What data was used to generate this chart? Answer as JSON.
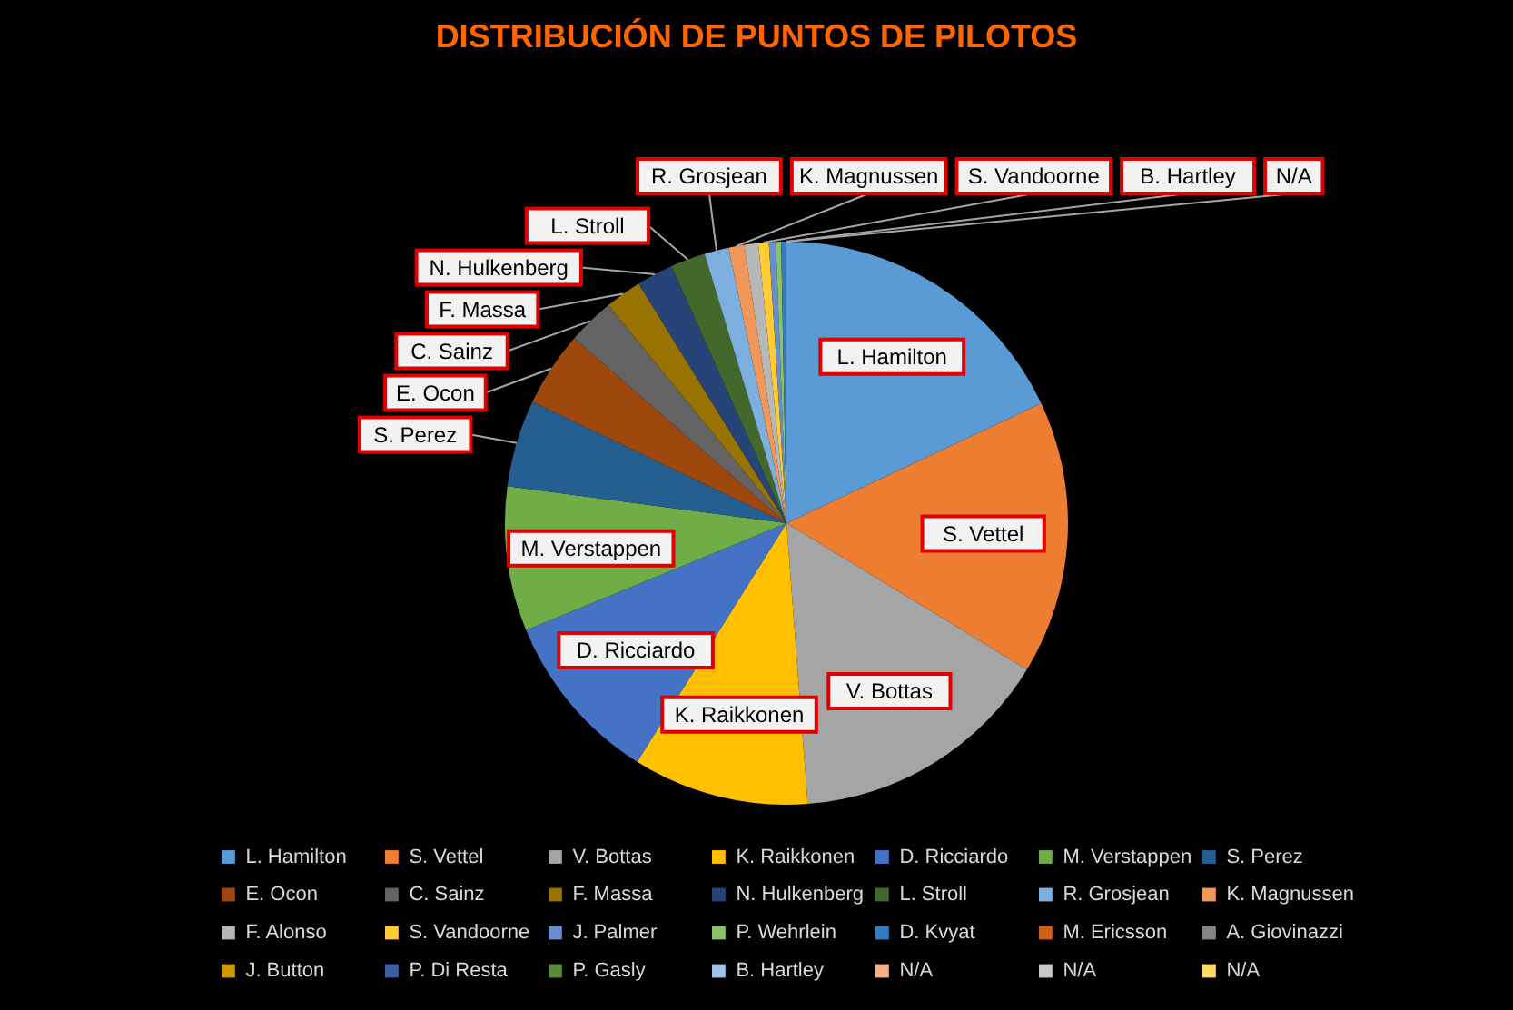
{
  "chart_data": {
    "type": "pie",
    "title": "DISTRIBUCIÓN DE PUNTOS DE PILOTOS",
    "categories": [
      "L. Hamilton",
      "S. Vettel",
      "V. Bottas",
      "K. Raikkonen",
      "D. Ricciardo",
      "M. Verstappen",
      "S. Perez",
      "E. Ocon",
      "C. Sainz",
      "F. Massa",
      "N. Hulkenberg",
      "L. Stroll",
      "R. Grosjean",
      "K. Magnussen",
      "F. Alonso",
      "S. Vandoorne",
      "J. Palmer",
      "P. Wehrlein",
      "D. Kvyat",
      "M. Ericsson",
      "A. Giovinazzi",
      "J. Button",
      "P. Di Resta",
      "P. Gasly",
      "B. Hartley",
      "N/A",
      "N/A",
      "N/A"
    ],
    "values": [
      18.0,
      15.7,
      15.1,
      10.1,
      9.9,
      8.3,
      5.0,
      4.3,
      2.7,
      2.1,
      2.1,
      2.0,
      1.4,
      0.9,
      0.8,
      0.6,
      0.4,
      0.3,
      0.3,
      0,
      0,
      0,
      0,
      0,
      0,
      0,
      0,
      0
    ],
    "colors": [
      "#5b9bd5",
      "#ed7d31",
      "#a5a5a5",
      "#ffc000",
      "#4472c4",
      "#70ad47",
      "#255e91",
      "#9e480e",
      "#636363",
      "#997300",
      "#264478",
      "#43682b",
      "#7cafdd",
      "#f1975a",
      "#b7b7b7",
      "#ffcd33",
      "#698ed0",
      "#8cc168",
      "#327dc2",
      "#d26012",
      "#848484",
      "#cc9a00",
      "#3a5fa2",
      "#5a8a39",
      "#9dc3e6",
      "#f4b183",
      "#c9c9c9",
      "#ffd966"
    ],
    "value_labels": [
      "L. Hamilton",
      "S. Vettel",
      "V. Bottas",
      "K. Raikkonen",
      "D. Ricciardo",
      "M. Verstappen",
      "S. Perez",
      "E. Ocon",
      "C. Sainz",
      "F. Massa",
      "N. Hulkenberg",
      "L. Stroll",
      "R. Grosjean",
      "K. Magnussen",
      null,
      "S. Vandoorne",
      null,
      null,
      null,
      null,
      null,
      null,
      null,
      null,
      "B. Hartley",
      "N/A",
      null,
      null
    ],
    "legend": "bottom"
  }
}
